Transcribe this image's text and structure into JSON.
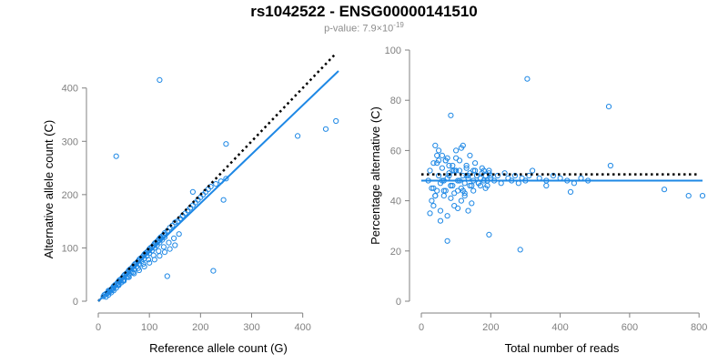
{
  "title": "rs1042522 - ENSG00000141510",
  "subtitle": {
    "prefix": "p-value: 7.9×10",
    "exponent": "-19"
  },
  "colors": {
    "points": "#1e88e5",
    "fit_line": "#1e88e5",
    "reference_line": "#000000",
    "axis": "#808080"
  },
  "chart_data": [
    {
      "type": "scatter",
      "xlabel": "Reference allele count (G)",
      "ylabel": "Alternative allele count (C)",
      "xlim": [
        0,
        470
      ],
      "ylim": [
        0,
        420
      ],
      "xticks": [
        0,
        100,
        200,
        300,
        400
      ],
      "yticks": [
        0,
        100,
        200,
        300,
        400
      ],
      "grid": false,
      "reference_line": {
        "style": "dotted",
        "x": [
          0,
          465
        ],
        "y": [
          0,
          465
        ]
      },
      "fit_line": {
        "style": "solid",
        "x": [
          0,
          470
        ],
        "y": [
          0,
          432
        ]
      },
      "points": {
        "x": [
          10,
          12,
          15,
          18,
          20,
          22,
          25,
          28,
          30,
          32,
          35,
          38,
          40,
          42,
          45,
          48,
          50,
          52,
          55,
          58,
          60,
          62,
          65,
          68,
          70,
          72,
          75,
          78,
          80,
          82,
          85,
          88,
          90,
          92,
          95,
          98,
          100,
          102,
          105,
          108,
          110,
          112,
          115,
          118,
          120,
          122,
          125,
          128,
          130,
          135,
          140,
          145,
          150,
          155,
          160,
          165,
          170,
          175,
          180,
          185,
          190,
          195,
          200,
          205,
          210,
          215,
          220,
          230,
          240,
          250,
          15,
          20,
          25,
          30,
          35,
          40,
          45,
          50,
          55,
          60,
          65,
          70,
          75,
          80,
          85,
          90,
          95,
          100,
          105,
          110,
          115,
          120,
          125,
          130,
          20,
          30,
          40,
          50,
          60,
          70,
          80,
          90,
          100,
          110,
          120,
          130,
          140,
          150,
          18,
          28,
          38,
          48,
          58,
          68,
          78,
          88,
          98,
          108,
          118,
          128,
          138,
          148,
          158,
          120,
          35,
          250,
          390,
          445,
          465,
          225,
          245,
          135,
          165,
          185
        ],
        "y": [
          9,
          12,
          14,
          15,
          20,
          18,
          22,
          25,
          28,
          30,
          32,
          35,
          38,
          40,
          42,
          45,
          48,
          50,
          52,
          55,
          58,
          60,
          62,
          65,
          68,
          70,
          72,
          75,
          78,
          80,
          82,
          85,
          88,
          90,
          92,
          95,
          98,
          100,
          102,
          105,
          108,
          110,
          112,
          115,
          118,
          120,
          122,
          125,
          128,
          132,
          138,
          142,
          148,
          150,
          155,
          160,
          165,
          170,
          175,
          180,
          185,
          190,
          195,
          200,
          205,
          210,
          215,
          220,
          225,
          230,
          8,
          12,
          16,
          20,
          25,
          30,
          35,
          40,
          45,
          50,
          55,
          60,
          65,
          70,
          75,
          80,
          85,
          90,
          95,
          100,
          105,
          110,
          115,
          120,
          18,
          25,
          32,
          38,
          45,
          52,
          58,
          65,
          72,
          78,
          85,
          92,
          98,
          105,
          15,
          22,
          30,
          38,
          46,
          54,
          62,
          70,
          78,
          86,
          94,
          102,
          110,
          118,
          126,
          415,
          272,
          295,
          310,
          323,
          338,
          57,
          190,
          47,
          160,
          205
        ]
      }
    },
    {
      "type": "scatter",
      "xlabel": "Total number of reads",
      "ylabel": "Percentage alternative (C)",
      "xlim": [
        0,
        810
      ],
      "ylim": [
        0,
        100
      ],
      "xticks": [
        0,
        200,
        400,
        600,
        800
      ],
      "yticks": [
        0,
        20,
        40,
        60,
        80,
        100
      ],
      "grid": false,
      "reference_line": {
        "style": "dotted",
        "x": [
          0,
          800
        ],
        "y": [
          50.5,
          50.5
        ]
      },
      "fit_line": {
        "style": "solid",
        "x": [
          0,
          810
        ],
        "y": [
          48,
          48
        ]
      },
      "points": {
        "x": [
          20,
          25,
          30,
          35,
          40,
          45,
          50,
          55,
          60,
          65,
          70,
          75,
          80,
          85,
          90,
          95,
          100,
          105,
          110,
          115,
          120,
          125,
          130,
          135,
          140,
          145,
          150,
          155,
          160,
          165,
          170,
          175,
          180,
          185,
          190,
          195,
          200,
          210,
          220,
          230,
          240,
          250,
          260,
          270,
          280,
          290,
          300,
          310,
          320,
          340,
          360,
          380,
          400,
          420,
          440,
          460,
          480,
          30,
          35,
          40,
          45,
          50,
          55,
          60,
          65,
          70,
          75,
          80,
          85,
          90,
          95,
          100,
          105,
          110,
          115,
          120,
          125,
          130,
          135,
          140,
          150,
          160,
          170,
          180,
          190,
          200,
          25,
          35,
          45,
          55,
          65,
          75,
          85,
          95,
          105,
          115,
          125,
          135,
          145,
          155,
          165,
          175,
          185,
          195,
          40,
          50,
          60,
          70,
          80,
          90,
          100,
          110,
          120,
          130,
          140,
          150,
          305,
          540,
          545,
          195,
          85,
          285,
          75,
          700,
          770,
          810,
          360,
          430
        ],
        "y": [
          48,
          52,
          45,
          55,
          42,
          58,
          50,
          47,
          53,
          44,
          56,
          49,
          51,
          46,
          54,
          43,
          57,
          48,
          52,
          45,
          50,
          47,
          53,
          49,
          51,
          46,
          48,
          52,
          50,
          47,
          49,
          51,
          48,
          50,
          46,
          52,
          49,
          48,
          50,
          47,
          51,
          49,
          48,
          50,
          47,
          49,
          48,
          50,
          52,
          49,
          48,
          50,
          49,
          48,
          47,
          49,
          48,
          40,
          38,
          62,
          44,
          60,
          36,
          58,
          42,
          56,
          34,
          54,
          46,
          52,
          38,
          60,
          44,
          56,
          40,
          62,
          42,
          54,
          36,
          58,
          44,
          50,
          46,
          52,
          48,
          50,
          35,
          45,
          55,
          32,
          48,
          57,
          41,
          52,
          37,
          61,
          43,
          50,
          39,
          55,
          47,
          53,
          45,
          51,
          42,
          56,
          48,
          44,
          50,
          46,
          52,
          48,
          44,
          50,
          46,
          52,
          88.5,
          77.5,
          54,
          26.5,
          74,
          20.5,
          24,
          44.5,
          42,
          42,
          46,
          43.5
        ]
      }
    }
  ]
}
